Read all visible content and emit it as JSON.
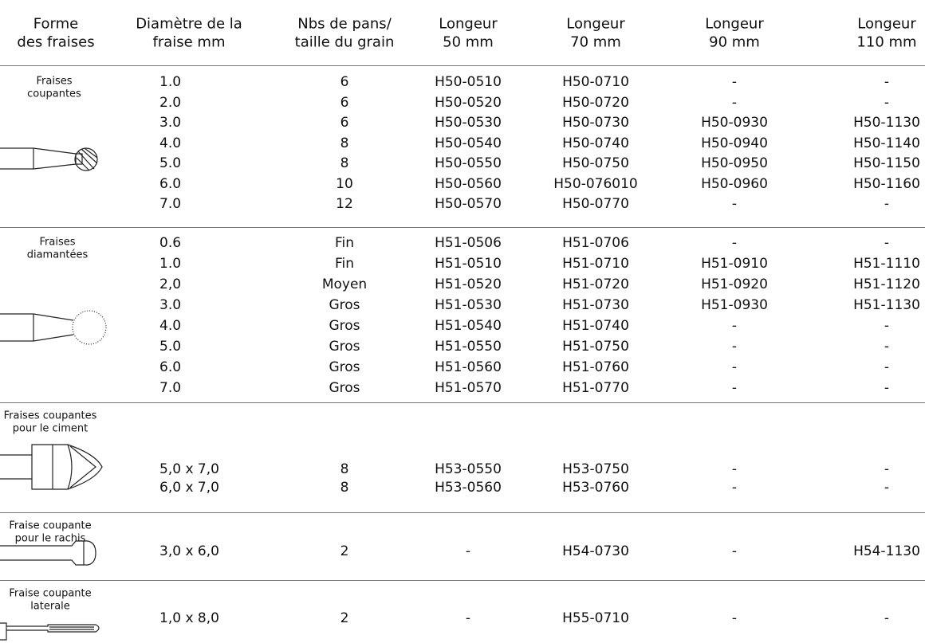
{
  "header": [
    [
      "Forme",
      "des fraises"
    ],
    [
      "Diamètre de la",
      "fraise mm"
    ],
    [
      "Nbs de pans/",
      "taille du grain"
    ],
    [
      "Longeur",
      "50 mm"
    ],
    [
      "Longeur",
      "70 mm"
    ],
    [
      "Longeur",
      "90 mm"
    ],
    [
      "Longeur",
      "110 mm"
    ]
  ],
  "groups": [
    {
      "label": [
        "Fraises",
        "coupantes"
      ],
      "rows": [
        [
          "1.0",
          "6",
          "H50-0510",
          "H50-0710",
          "-",
          "-"
        ],
        [
          "2.0",
          "6",
          "H50-0520",
          "H50-0720",
          "-",
          "-"
        ],
        [
          "3.0",
          "6",
          "H50-0530",
          "H50-0730",
          "H50-0930",
          "H50-1130"
        ],
        [
          "4.0",
          "8",
          "H50-0540",
          "H50-0740",
          "H50-0940",
          "H50-1140"
        ],
        [
          "5.0",
          "8",
          "H50-0550",
          "H50-0750",
          "H50-0950",
          "H50-1150"
        ],
        [
          "6.0",
          "10",
          "H50-0560",
          "H50-076010",
          "H50-0960",
          "H50-1160"
        ],
        [
          "7.0",
          "12",
          "H50-0570",
          "H50-0770",
          "-",
          "-"
        ]
      ]
    },
    {
      "label": [
        "Fraises",
        "diamantées"
      ],
      "rows": [
        [
          "0.6",
          "Fin",
          "H51-0506",
          "H51-0706",
          "-",
          "-"
        ],
        [
          "1.0",
          "Fin",
          "H51-0510",
          "H51-0710",
          "H51-0910",
          "H51-1110"
        ],
        [
          "2,0",
          "Moyen",
          "H51-0520",
          "H51-0720",
          "H51-0920",
          "H51-1120"
        ],
        [
          "3.0",
          "Gros",
          "H51-0530",
          "H51-0730",
          "H51-0930",
          "H51-1130"
        ],
        [
          "4.0",
          "Gros",
          "H51-0540",
          "H51-0740",
          "-",
          "-"
        ],
        [
          "5.0",
          "Gros",
          "H51-0550",
          "H51-0750",
          "-",
          "-"
        ],
        [
          "6.0",
          "Gros",
          "H51-0560",
          "H51-0760",
          "-",
          "-"
        ],
        [
          "7.0",
          "Gros",
          "H51-0570",
          "H51-0770",
          "-",
          "-"
        ]
      ]
    },
    {
      "label": [
        "Fraises coupantes",
        "pour le ciment"
      ],
      "rows": [
        [
          "5,0 x 7,0",
          "8",
          "H53-0550",
          "H53-0750",
          "-",
          "-"
        ],
        [
          "6,0 x 7,0",
          "8",
          "H53-0560",
          "H53-0760",
          "-",
          "-"
        ]
      ]
    },
    {
      "label": [
        "Fraise coupante",
        "pour le rachis"
      ],
      "rows": [
        [
          "3,0 x 6,0",
          "2",
          "-",
          "H54-0730",
          "-",
          "H54-1130"
        ]
      ]
    },
    {
      "label": [
        "Fraise coupante",
        "laterale"
      ],
      "rows": [
        [
          "1,0 x 8,0",
          "2",
          "-",
          "H55-0710",
          "-",
          "-"
        ]
      ]
    }
  ]
}
